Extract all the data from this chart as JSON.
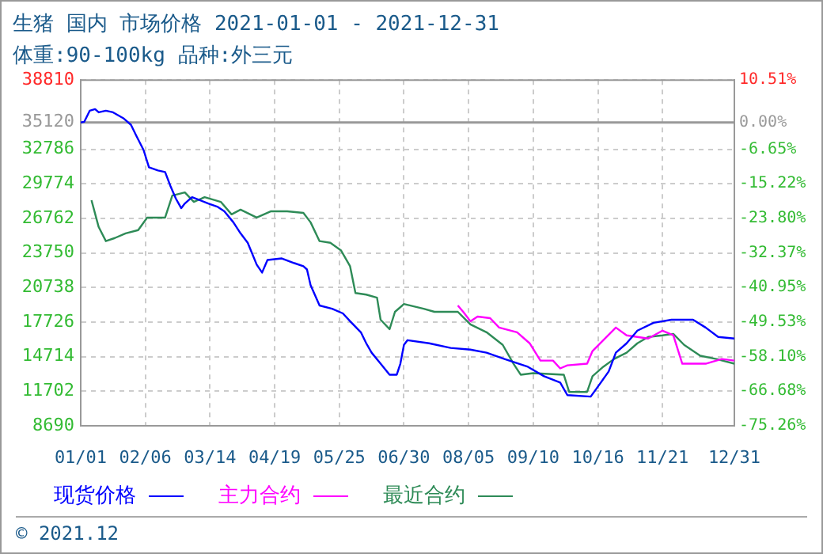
{
  "chart_data": {
    "type": "line",
    "title": "生猪 国内 市场价格 2021-01-01 - 2021-12-31",
    "subtitle": "体重:90-100kg 品种:外三元",
    "annotations": [
      "© 2021.12"
    ],
    "xlim": [
      "2021-01-01",
      "2021-12-31"
    ],
    "xticks": [
      {
        "value": "2021-01-01",
        "label": "01/01"
      },
      {
        "value": "2021-02-06",
        "label": "02/06"
      },
      {
        "value": "2021-03-14",
        "label": "03/14"
      },
      {
        "value": "2021-04-19",
        "label": "04/19"
      },
      {
        "value": "2021-05-25",
        "label": "05/25"
      },
      {
        "value": "2021-06-30",
        "label": "06/30"
      },
      {
        "value": "2021-08-05",
        "label": "08/05"
      },
      {
        "value": "2021-09-10",
        "label": "09/10"
      },
      {
        "value": "2021-10-16",
        "label": "10/16"
      },
      {
        "value": "2021-11-21",
        "label": "11/21"
      },
      {
        "value": "2021-12-31",
        "label": "12/31"
      }
    ],
    "ylim": [
      8690,
      38810
    ],
    "yticks": [
      8690,
      11702,
      14714,
      17726,
      20738,
      23750,
      26762,
      29774,
      32786,
      35120,
      38810
    ],
    "y2lim": [
      -75.26,
      10.51
    ],
    "y2ticks": [
      {
        "value": -75.26,
        "label": "-75.26%"
      },
      {
        "value": -66.68,
        "label": "-66.68%"
      },
      {
        "value": -58.1,
        "label": "-58.10%"
      },
      {
        "value": -49.53,
        "label": "-49.53%"
      },
      {
        "value": -40.95,
        "label": "-40.95%"
      },
      {
        "value": -32.37,
        "label": "-32.37%"
      },
      {
        "value": -23.8,
        "label": "-23.80%"
      },
      {
        "value": -15.22,
        "label": "-15.22%"
      },
      {
        "value": -6.65,
        "label": "-6.65%"
      },
      {
        "value": 0,
        "label": "0.00%"
      },
      {
        "value": 10.51,
        "label": "10.51%"
      }
    ],
    "ref_lines": [
      {
        "axis": "y",
        "value": 35120,
        "color": "#999999"
      }
    ],
    "grid": true,
    "legend": "bottom",
    "marker": "none",
    "line_style": "solid",
    "series": [
      {
        "name": "现货价格",
        "color": "#0000ff",
        "x": [
          "2021-01-01",
          "2021-01-03",
          "2021-01-06",
          "2021-01-09",
          "2021-01-11",
          "2021-01-15",
          "2021-01-19",
          "2021-01-25",
          "2021-01-29",
          "2021-02-01",
          "2021-02-05",
          "2021-02-08",
          "2021-02-13",
          "2021-02-17",
          "2021-02-20",
          "2021-02-23",
          "2021-02-26",
          "2021-02-28",
          "2021-03-04",
          "2021-03-13",
          "2021-03-18",
          "2021-03-22",
          "2021-03-27",
          "2021-03-31",
          "2021-04-04",
          "2021-04-09",
          "2021-04-12",
          "2021-04-15",
          "2021-04-23",
          "2021-04-30",
          "2021-05-05",
          "2021-05-07",
          "2021-05-09",
          "2021-05-14",
          "2021-05-21",
          "2021-05-27",
          "2021-05-31",
          "2021-06-06",
          "2021-06-09",
          "2021-06-12",
          "2021-06-17",
          "2021-06-22",
          "2021-06-26",
          "2021-06-28",
          "2021-06-30",
          "2021-07-02",
          "2021-07-14",
          "2021-07-26",
          "2021-08-06",
          "2021-08-15",
          "2021-08-25",
          "2021-09-07",
          "2021-09-16",
          "2021-09-25",
          "2021-09-29",
          "2021-10-12",
          "2021-10-17",
          "2021-10-22",
          "2021-10-26",
          "2021-11-01",
          "2021-11-07",
          "2021-11-16",
          "2021-11-26",
          "2021-12-08",
          "2021-12-15",
          "2021-12-22",
          "2021-12-31"
        ],
        "values": [
          35120,
          35180,
          36140,
          36280,
          36000,
          36140,
          36000,
          35460,
          34910,
          33950,
          32720,
          31210,
          30940,
          30800,
          29570,
          28480,
          27650,
          28060,
          28610,
          28060,
          27790,
          27380,
          26420,
          25460,
          24640,
          22730,
          22040,
          23140,
          23270,
          22860,
          22590,
          22310,
          20950,
          19170,
          18890,
          18480,
          17800,
          16840,
          15880,
          15060,
          14100,
          13140,
          13140,
          14100,
          15740,
          16150,
          15880,
          15470,
          15330,
          15060,
          14510,
          13830,
          13010,
          12460,
          11360,
          11230,
          12320,
          13420,
          15060,
          15880,
          16980,
          17660,
          17930,
          17930,
          17250,
          16430,
          16290
        ]
      },
      {
        "name": "主力合约",
        "color": "#ff00ff",
        "x": [
          "2021-07-30",
          "2021-08-02",
          "2021-08-06",
          "2021-08-10",
          "2021-08-17",
          "2021-08-22",
          "2021-09-01",
          "2021-09-08",
          "2021-09-14",
          "2021-09-21",
          "2021-09-25",
          "2021-09-29",
          "2021-10-10",
          "2021-10-13",
          "2021-10-19",
          "2021-10-26",
          "2021-11-01",
          "2021-11-07",
          "2021-11-13",
          "2021-11-21",
          "2021-11-27",
          "2021-12-02",
          "2021-12-15",
          "2021-12-24",
          "2021-12-31"
        ],
        "values": [
          19170,
          18620,
          17800,
          18210,
          18070,
          17250,
          16840,
          15880,
          14370,
          14370,
          13690,
          13960,
          14100,
          15200,
          16150,
          17250,
          16570,
          16430,
          16290,
          16980,
          16570,
          14100,
          14100,
          14510,
          14370
        ]
      },
      {
        "name": "最近合约",
        "color": "#2e8b57",
        "x": [
          "2021-01-07",
          "2021-01-11",
          "2021-01-15",
          "2021-01-20",
          "2021-01-26",
          "2021-02-02",
          "2021-02-07",
          "2021-02-17",
          "2021-02-21",
          "2021-02-28",
          "2021-03-05",
          "2021-03-11",
          "2021-03-20",
          "2021-03-26",
          "2021-03-31",
          "2021-04-09",
          "2021-04-17",
          "2021-04-26",
          "2021-05-05",
          "2021-05-09",
          "2021-05-14",
          "2021-05-20",
          "2021-05-26",
          "2021-05-31",
          "2021-06-03",
          "2021-06-09",
          "2021-06-15",
          "2021-06-17",
          "2021-06-22",
          "2021-06-25",
          "2021-06-30",
          "2021-07-11",
          "2021-07-17",
          "2021-07-30",
          "2021-08-06",
          "2021-08-15",
          "2021-08-24",
          "2021-08-30",
          "2021-09-03",
          "2021-09-10",
          "2021-09-27",
          "2021-09-30",
          "2021-10-10",
          "2021-10-13",
          "2021-10-19",
          "2021-10-25",
          "2021-11-01",
          "2021-11-07",
          "2021-11-13",
          "2021-11-21",
          "2021-11-27",
          "2021-12-03",
          "2021-12-12",
          "2021-12-21",
          "2021-12-31"
        ],
        "values": [
          28340,
          26010,
          24780,
          25050,
          25460,
          25740,
          26830,
          26830,
          28750,
          29020,
          28200,
          28610,
          28200,
          27110,
          27520,
          26830,
          27380,
          27380,
          27240,
          26420,
          24780,
          24640,
          23960,
          22590,
          20260,
          20120,
          19850,
          17930,
          17110,
          18620,
          19300,
          18890,
          18620,
          18620,
          17520,
          16840,
          15740,
          14100,
          13140,
          13280,
          13140,
          11640,
          11640,
          13010,
          13830,
          14510,
          15060,
          15880,
          16430,
          16570,
          16700,
          15740,
          14790,
          14510,
          14100
        ]
      }
    ]
  }
}
